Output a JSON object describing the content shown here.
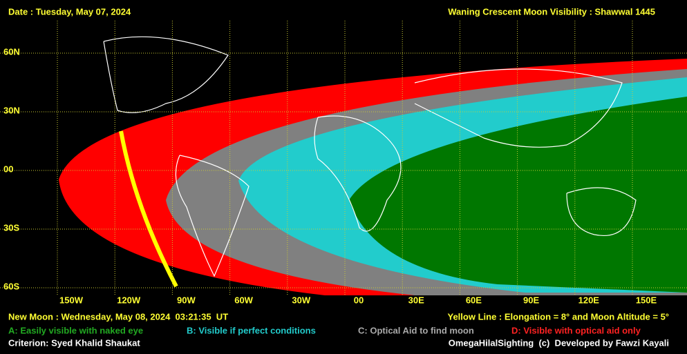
{
  "header": {
    "date": "Date : Tuesday, May 07, 2024",
    "title": "Waning Crescent Moon Visibility : Shawwal 1445"
  },
  "map": {
    "lat_labels": [
      "60N",
      "30N",
      "00",
      "30S",
      "60S"
    ],
    "lon_labels": [
      "150W",
      "120W",
      "90W",
      "60W",
      "30W",
      "00",
      "30E",
      "60E",
      "90E",
      "120E",
      "150E"
    ]
  },
  "footer": {
    "new_moon": "New Moon : Wednesday, May 08, 2024  03:21:35  UT",
    "yellow_line": "Yellow Line : Elongation = 8° and Moon Altitude = 5°",
    "legend": [
      "A: Easily visible with naked eye",
      "B: Visible if perfect conditions",
      "C: Optical Aid to find moon",
      "D: Visible with optical aid only"
    ],
    "criterion": "Criterion: Syed Khalid Shaukat",
    "credit": "OmegaHilalSighting  (c)  Developed by Fawzi Kayali"
  }
}
